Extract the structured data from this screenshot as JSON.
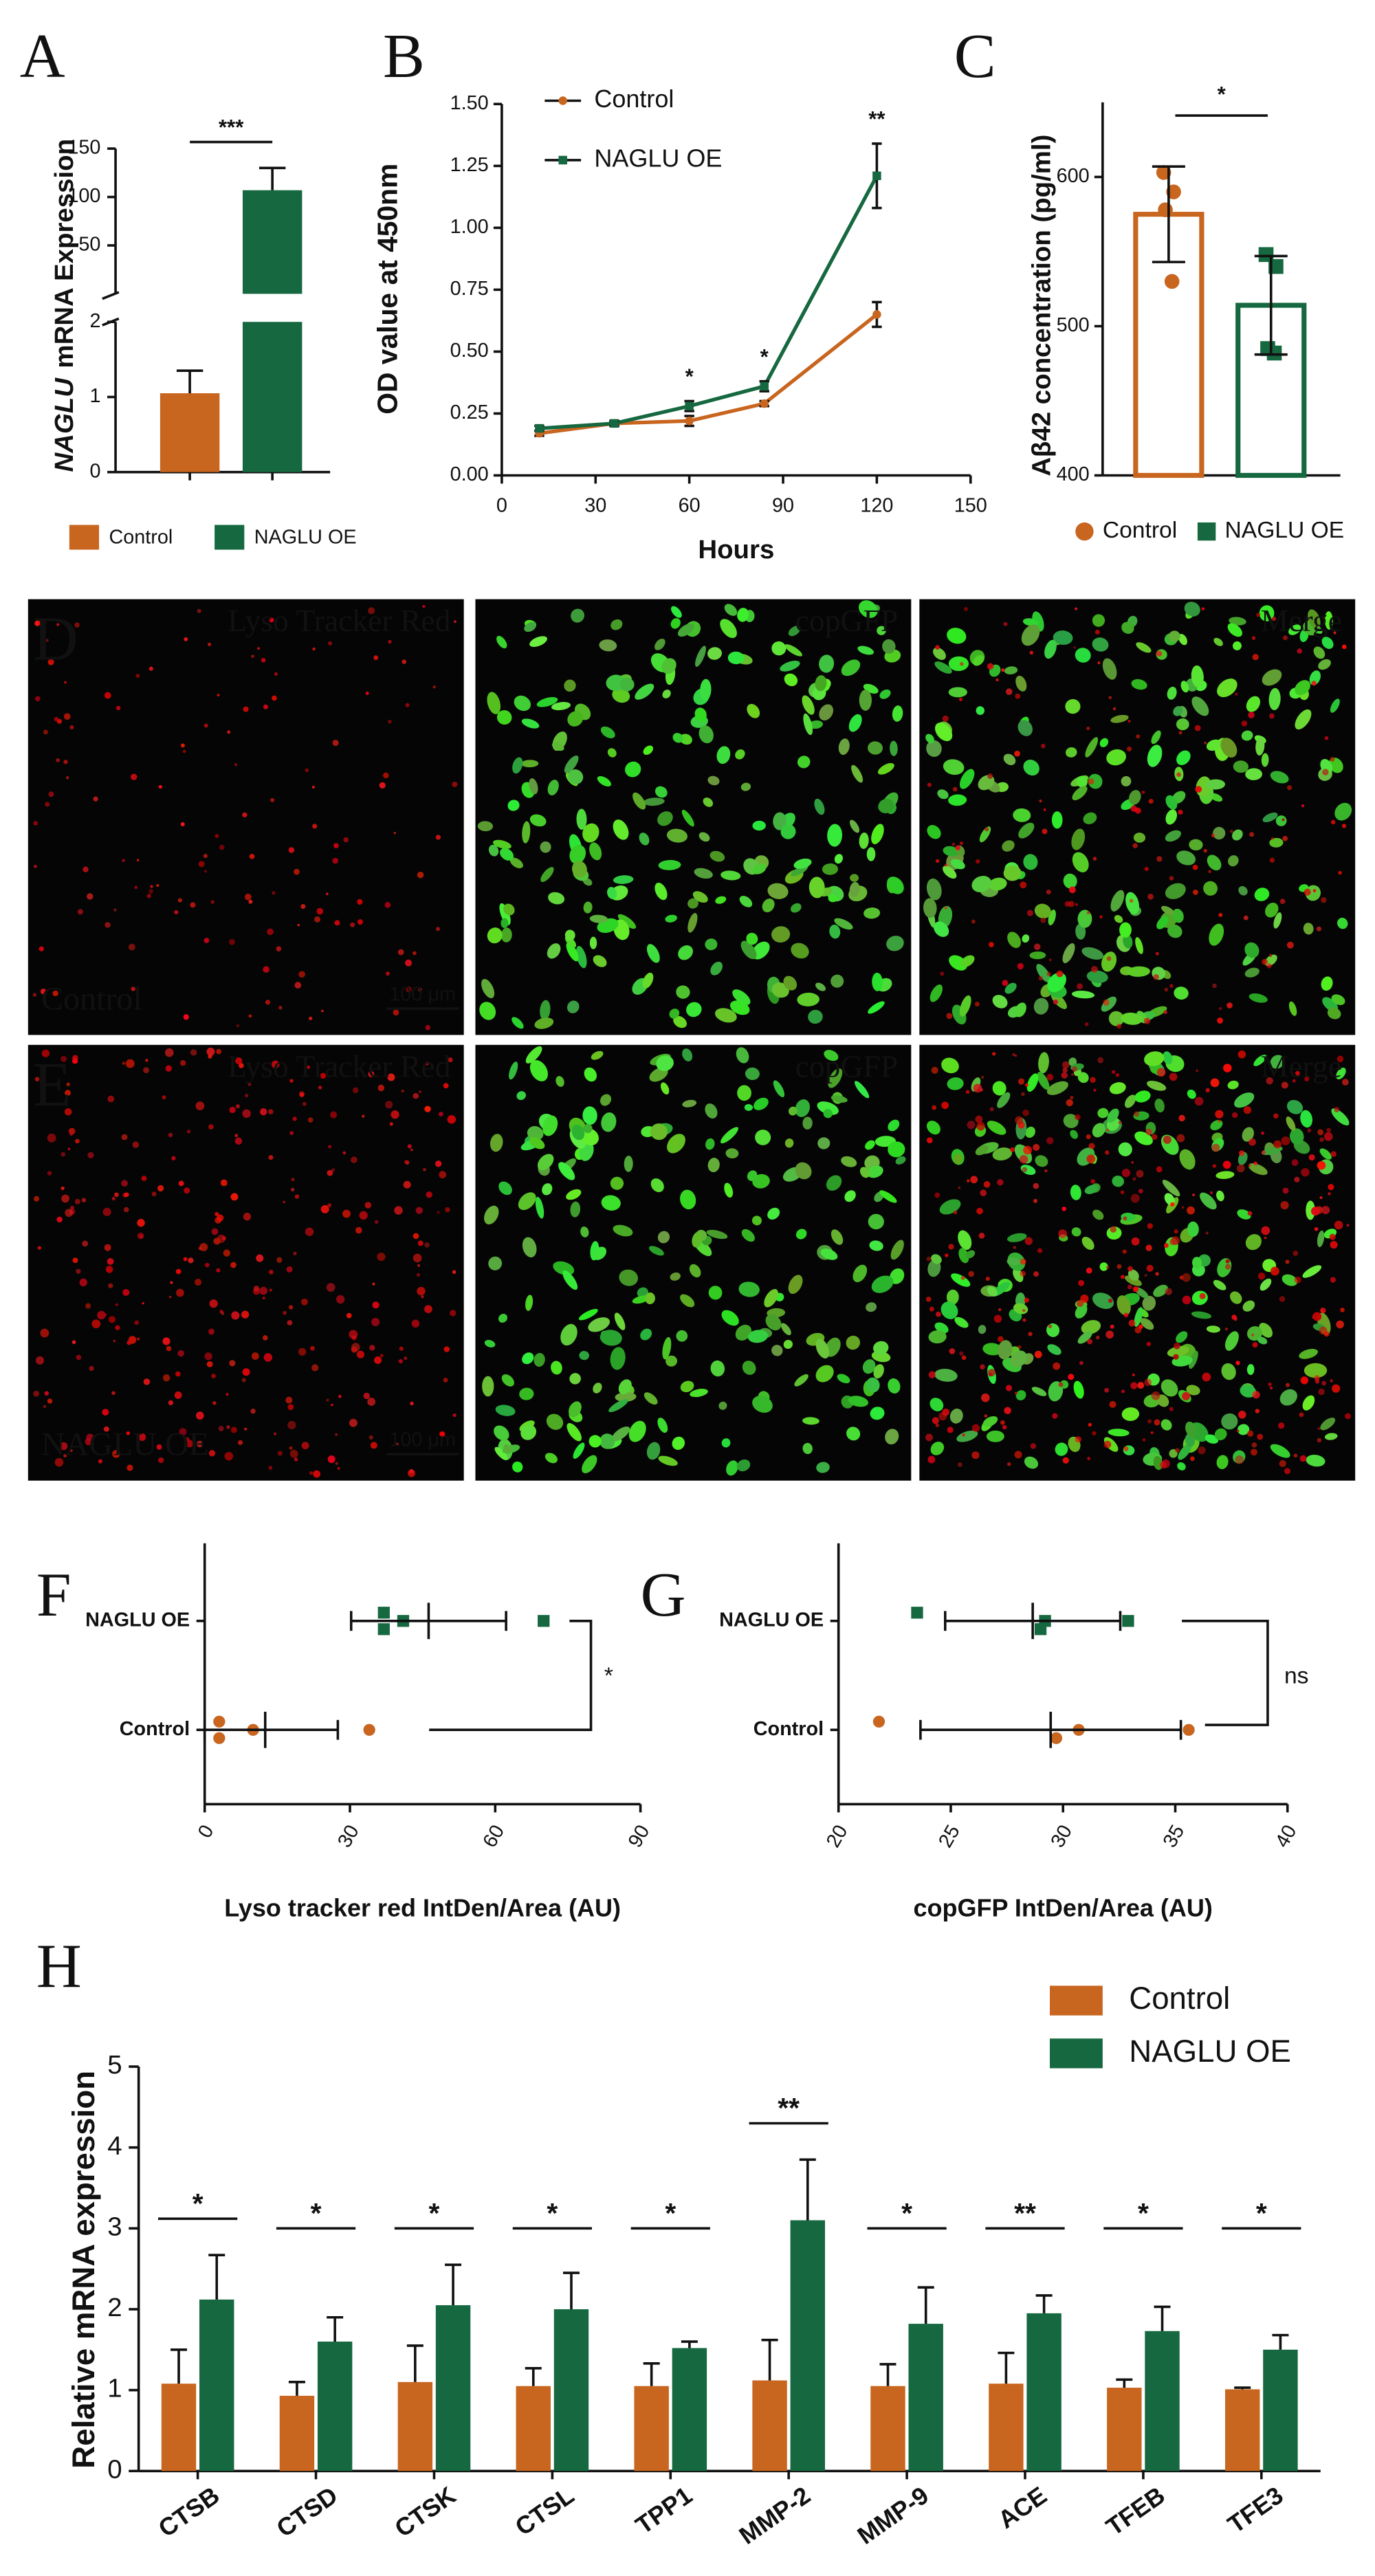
{
  "chart_data": [
    {
      "panel": "A",
      "type": "broken_bar",
      "ylabel": {
        "gene": "NAGLU",
        "text": "mRNA Expression"
      },
      "categories": [
        "Control",
        "NAGLU OE"
      ],
      "values": [
        1.05,
        107
      ],
      "errors": [
        0.3,
        23
      ],
      "colors": [
        "#c8651f",
        "#15683f"
      ],
      "segments": [
        {
          "ylim": [
            0,
            2
          ],
          "yticks": [
            0,
            1,
            2
          ]
        },
        {
          "ylim": [
            0,
            150
          ],
          "yticks": [
            50,
            100,
            150
          ]
        }
      ],
      "significance": "***"
    },
    {
      "panel": "B",
      "type": "line",
      "xlabel": "Hours",
      "ylabel": "OD value at 450nm",
      "x": [
        12,
        36,
        60,
        84,
        120
      ],
      "series": [
        {
          "name": "Control",
          "color": "#c8651f",
          "marker": "circle",
          "values": [
            0.17,
            0.21,
            0.22,
            0.29,
            0.65
          ],
          "errors": [
            0.01,
            0.01,
            0.02,
            0.01,
            0.05
          ]
        },
        {
          "name": "NAGLU OE",
          "color": "#15683f",
          "marker": "square",
          "values": [
            0.19,
            0.21,
            0.28,
            0.36,
            1.21
          ],
          "errors": [
            0.01,
            0.01,
            0.02,
            0.02,
            0.13
          ]
        }
      ],
      "xlim": [
        0,
        150
      ],
      "xticks": [
        0,
        30,
        60,
        90,
        120,
        150
      ],
      "ylim": [
        0,
        1.5
      ],
      "yticks": [
        {
          "value": 0,
          "label": "0.00"
        },
        {
          "value": 0.25,
          "label": "0.25"
        },
        {
          "value": 0.5,
          "label": "0.50"
        },
        {
          "value": 0.75,
          "label": "0.75"
        },
        {
          "value": 1,
          "label": "1.00"
        },
        {
          "value": 1.25,
          "label": "1.25"
        },
        {
          "value": 1.5,
          "label": "1.50"
        }
      ],
      "annotations": [
        {
          "x": 60,
          "text": "*"
        },
        {
          "x": 84,
          "text": "*"
        },
        {
          "x": 120,
          "text": "**"
        }
      ]
    },
    {
      "panel": "C",
      "type": "bar_points",
      "ylabel": "Aβ42 concentration (pg/ml)",
      "categories": [
        "Control",
        "NAGLU OE"
      ],
      "values": [
        575,
        514
      ],
      "errors": [
        32,
        33
      ],
      "points": [
        [
          603,
          590,
          578,
          530
        ],
        [
          548,
          540,
          485,
          482
        ]
      ],
      "colors": [
        "#c8651f",
        "#15683f"
      ],
      "markers": [
        "circle",
        "square"
      ],
      "ylim": [
        400,
        650
      ],
      "yticks": [
        400,
        500,
        600
      ],
      "significance": "*"
    },
    {
      "panel": "F",
      "type": "dot_error",
      "xlabel": "Lyso tracker red IntDen/Area (AU)",
      "categories": [
        "Control",
        "NAGLU OE"
      ],
      "values": [
        12.5,
        46.25
      ],
      "errors": [
        15,
        16
      ],
      "points": [
        [
          3,
          3,
          10,
          34
        ],
        [
          37,
          37,
          41,
          70
        ]
      ],
      "colors": [
        "#c8651f",
        "#15683f"
      ],
      "markers": [
        "circle",
        "square"
      ],
      "xlim": [
        0,
        90
      ],
      "xticks": [
        0,
        30,
        60,
        90
      ],
      "significance": "*"
    },
    {
      "panel": "G",
      "type": "dot_error",
      "xlabel": "copGFP IntDen/Area (AU)",
      "categories": [
        "Control",
        "NAGLU OE"
      ],
      "values": [
        29.45,
        28.65
      ],
      "errors": [
        5.8,
        3.9
      ],
      "points": [
        [
          21.8,
          29.7,
          30.7,
          35.6
        ],
        [
          23.5,
          29,
          29.2,
          32.9
        ]
      ],
      "colors": [
        "#c8651f",
        "#15683f"
      ],
      "markers": [
        "circle",
        "square"
      ],
      "xlim": [
        20,
        40
      ],
      "xticks": [
        20,
        25,
        30,
        35,
        40
      ],
      "significance": "ns"
    },
    {
      "panel": "H",
      "type": "grouped_bar",
      "ylabel": "Relative mRNA expression",
      "categories": [
        "CTSB",
        "CTSD",
        "CTSK",
        "CTSL",
        "TPP1",
        "MMP-2",
        "MMP-9",
        "ACE",
        "TFEB",
        "TFE3"
      ],
      "series": [
        {
          "name": "Control",
          "color": "#c8651f",
          "values": [
            1.08,
            0.93,
            1.1,
            1.05,
            1.05,
            1.12,
            1.05,
            1.08,
            1.03,
            1.01
          ],
          "errors": [
            0.42,
            0.17,
            0.45,
            0.22,
            0.28,
            0.5,
            0.27,
            0.38,
            0.1,
            0.02
          ]
        },
        {
          "name": "NAGLU OE",
          "color": "#15683f",
          "values": [
            2.12,
            1.6,
            2.05,
            2.0,
            1.52,
            3.1,
            1.82,
            1.95,
            1.73,
            1.5
          ],
          "errors": [
            0.55,
            0.3,
            0.5,
            0.45,
            0.08,
            0.75,
            0.45,
            0.22,
            0.3,
            0.18
          ]
        }
      ],
      "ylim": [
        0,
        5
      ],
      "yticks": [
        0,
        1,
        2,
        3,
        4,
        5
      ],
      "significance": [
        "*",
        "*",
        "*",
        "*",
        "*",
        "**",
        "*",
        "**",
        "*",
        "*"
      ]
    }
  ],
  "micrographs": {
    "channels": [
      "Lyso Tracker Red",
      "copGFP",
      "Merge"
    ],
    "rows": [
      {
        "panel": "D",
        "condition": "Control",
        "scale_bar": "100 μm"
      },
      {
        "panel": "E",
        "condition": "NAGLU OE",
        "scale_bar": "100 μm"
      }
    ]
  }
}
